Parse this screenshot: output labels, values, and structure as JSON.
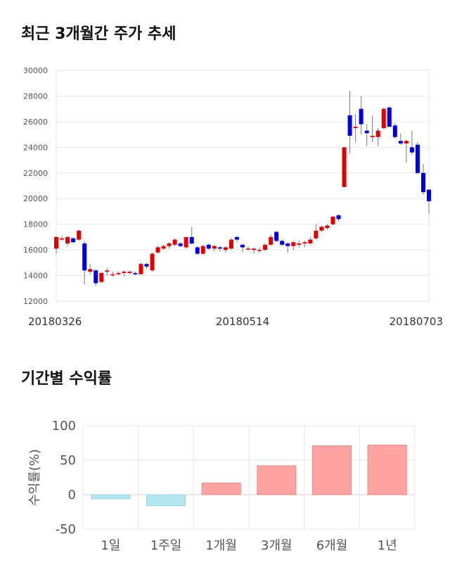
{
  "titles": {
    "trend": "최근 3개월간 주가 추세",
    "returns": "기간별 수익률"
  },
  "colors": {
    "up": "#e00000",
    "down": "#0000dd",
    "pos": "#ffa3a3",
    "neg": "#b4e6f2",
    "grid": "#e6e6e6"
  },
  "chart_data": [
    {
      "type": "candlestick",
      "title": "최근 3개월간 주가 추세",
      "ylim": [
        12000,
        30000
      ],
      "yticks": [
        12000,
        14000,
        16000,
        18000,
        20000,
        22000,
        24000,
        26000,
        28000,
        30000
      ],
      "x_labels": [
        {
          "index": 0,
          "label": "20180326"
        },
        {
          "index": 33,
          "label": "20180514"
        },
        {
          "index": 65,
          "label": "20180703"
        }
      ],
      "candles": [
        [
          16100,
          17000,
          15700,
          17100
        ],
        [
          16800,
          16900,
          16700,
          17100
        ],
        [
          16500,
          17000,
          16300,
          17100
        ],
        [
          16900,
          16600,
          16500,
          17000
        ],
        [
          16800,
          17500,
          16700,
          17600
        ],
        [
          16500,
          14400,
          13300,
          16700
        ],
        [
          14300,
          14500,
          14100,
          14900
        ],
        [
          14400,
          13400,
          13200,
          14500
        ],
        [
          13500,
          14200,
          13400,
          14300
        ],
        [
          14300,
          14400,
          14000,
          14600
        ],
        [
          14100,
          14100,
          13900,
          14300
        ],
        [
          14100,
          14200,
          14000,
          14300
        ],
        [
          14200,
          14300,
          13900,
          14400
        ],
        [
          14200,
          14300,
          14100,
          14400
        ],
        [
          14200,
          14100,
          14000,
          14300
        ],
        [
          14100,
          14900,
          14100,
          15000
        ],
        [
          14900,
          14700,
          14500,
          15000
        ],
        [
          14400,
          15700,
          14300,
          15800
        ],
        [
          15800,
          16200,
          15700,
          16300
        ],
        [
          16100,
          16300,
          16000,
          16400
        ],
        [
          16300,
          16500,
          16100,
          16600
        ],
        [
          16400,
          16800,
          16300,
          16900
        ],
        [
          16500,
          16300,
          16200,
          16600
        ],
        [
          16200,
          17000,
          16100,
          17000
        ],
        [
          17000,
          16500,
          16400,
          17800
        ],
        [
          16200,
          15700,
          15600,
          16300
        ],
        [
          15700,
          16300,
          15600,
          16400
        ],
        [
          16400,
          16100,
          16000,
          16500
        ],
        [
          16100,
          16300,
          15900,
          16400
        ],
        [
          16200,
          16100,
          15900,
          16300
        ],
        [
          16000,
          16200,
          15800,
          16300
        ],
        [
          16100,
          16800,
          16000,
          16900
        ],
        [
          17000,
          16800,
          16600,
          17100
        ],
        [
          16400,
          16200,
          15800,
          16500
        ],
        [
          16100,
          16100,
          16000,
          16300
        ],
        [
          16000,
          16100,
          15700,
          16200
        ],
        [
          16000,
          16000,
          15800,
          16200
        ],
        [
          16000,
          16400,
          15900,
          16500
        ],
        [
          16400,
          17000,
          16300,
          17200
        ],
        [
          17400,
          16700,
          16600,
          17500
        ],
        [
          16700,
          16400,
          16300,
          16800
        ],
        [
          16500,
          16300,
          15800,
          16600
        ],
        [
          16300,
          16600,
          16000,
          16700
        ],
        [
          16400,
          16500,
          16200,
          16700
        ],
        [
          16500,
          16600,
          16200,
          16700
        ],
        [
          16500,
          16800,
          16400,
          17000
        ],
        [
          16900,
          17500,
          16800,
          18000
        ],
        [
          17500,
          17800,
          17400,
          17900
        ],
        [
          17700,
          17900,
          17600,
          18000
        ],
        [
          18000,
          18600,
          17900,
          18600
        ],
        [
          18700,
          18400,
          18200,
          18800
        ],
        [
          20900,
          24000,
          20900,
          24000
        ],
        [
          26500,
          24900,
          23500,
          28400
        ],
        [
          25500,
          25600,
          24400,
          26600
        ],
        [
          27000,
          25800,
          25000,
          28000
        ],
        [
          25300,
          25100,
          24100,
          25800
        ],
        [
          24800,
          24900,
          24400,
          26500
        ],
        [
          24800,
          25300,
          24100,
          25500
        ],
        [
          25500,
          27000,
          25400,
          27100
        ],
        [
          27100,
          25600,
          25600,
          27200
        ],
        [
          25700,
          24800,
          24700,
          25900
        ],
        [
          24500,
          24300,
          24200,
          25100
        ],
        [
          24300,
          24500,
          22800,
          24600
        ],
        [
          24000,
          23600,
          23400,
          25300
        ],
        [
          24200,
          22000,
          21900,
          24400
        ],
        [
          22000,
          20500,
          20300,
          22700
        ],
        [
          20700,
          19800,
          18800,
          20700
        ]
      ]
    },
    {
      "type": "bar",
      "title": "기간별 수익률",
      "ylabel": "수익률(%)",
      "ylim": [
        -50,
        100
      ],
      "yticks": [
        -50,
        0,
        50,
        100
      ],
      "categories": [
        "1일",
        "1주일",
        "1개월",
        "3개월",
        "6개월",
        "1년"
      ],
      "values": [
        -6,
        -16,
        17,
        42,
        71,
        72
      ]
    }
  ]
}
